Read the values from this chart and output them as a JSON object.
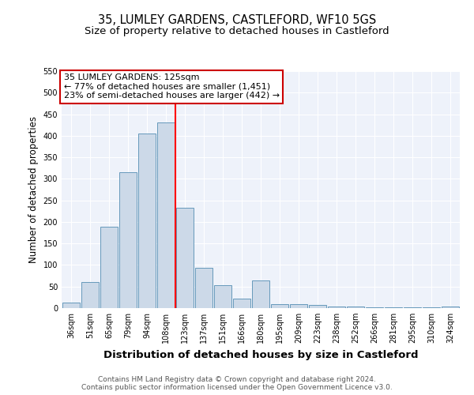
{
  "title": "35, LUMLEY GARDENS, CASTLEFORD, WF10 5GS",
  "subtitle": "Size of property relative to detached houses in Castleford",
  "xlabel": "Distribution of detached houses by size in Castleford",
  "ylabel": "Number of detached properties",
  "categories": [
    "36sqm",
    "51sqm",
    "65sqm",
    "79sqm",
    "94sqm",
    "108sqm",
    "123sqm",
    "137sqm",
    "151sqm",
    "166sqm",
    "180sqm",
    "195sqm",
    "209sqm",
    "223sqm",
    "238sqm",
    "252sqm",
    "266sqm",
    "281sqm",
    "295sqm",
    "310sqm",
    "324sqm"
  ],
  "values": [
    13,
    60,
    188,
    315,
    405,
    430,
    232,
    93,
    53,
    22,
    65,
    10,
    10,
    7,
    4,
    3,
    2,
    2,
    2,
    1,
    4
  ],
  "bar_color": "#ccd9e8",
  "bar_edge_color": "#6699bb",
  "red_line_index": 6,
  "annotation_line1": "35 LUMLEY GARDENS: 125sqm",
  "annotation_line2": "← 77% of detached houses are smaller (1,451)",
  "annotation_line3": "23% of semi-detached houses are larger (442) →",
  "annotation_box_color": "#ffffff",
  "annotation_box_edge_color": "#cc0000",
  "ylim": [
    0,
    550
  ],
  "yticks": [
    0,
    50,
    100,
    150,
    200,
    250,
    300,
    350,
    400,
    450,
    500,
    550
  ],
  "background_color": "#eef2fa",
  "footer_line1": "Contains HM Land Registry data © Crown copyright and database right 2024.",
  "footer_line2": "Contains public sector information licensed under the Open Government Licence v3.0.",
  "title_fontsize": 10.5,
  "subtitle_fontsize": 9.5,
  "xlabel_fontsize": 9.5,
  "ylabel_fontsize": 8.5,
  "tick_fontsize": 7,
  "footer_fontsize": 6.5,
  "annotation_fontsize": 8
}
